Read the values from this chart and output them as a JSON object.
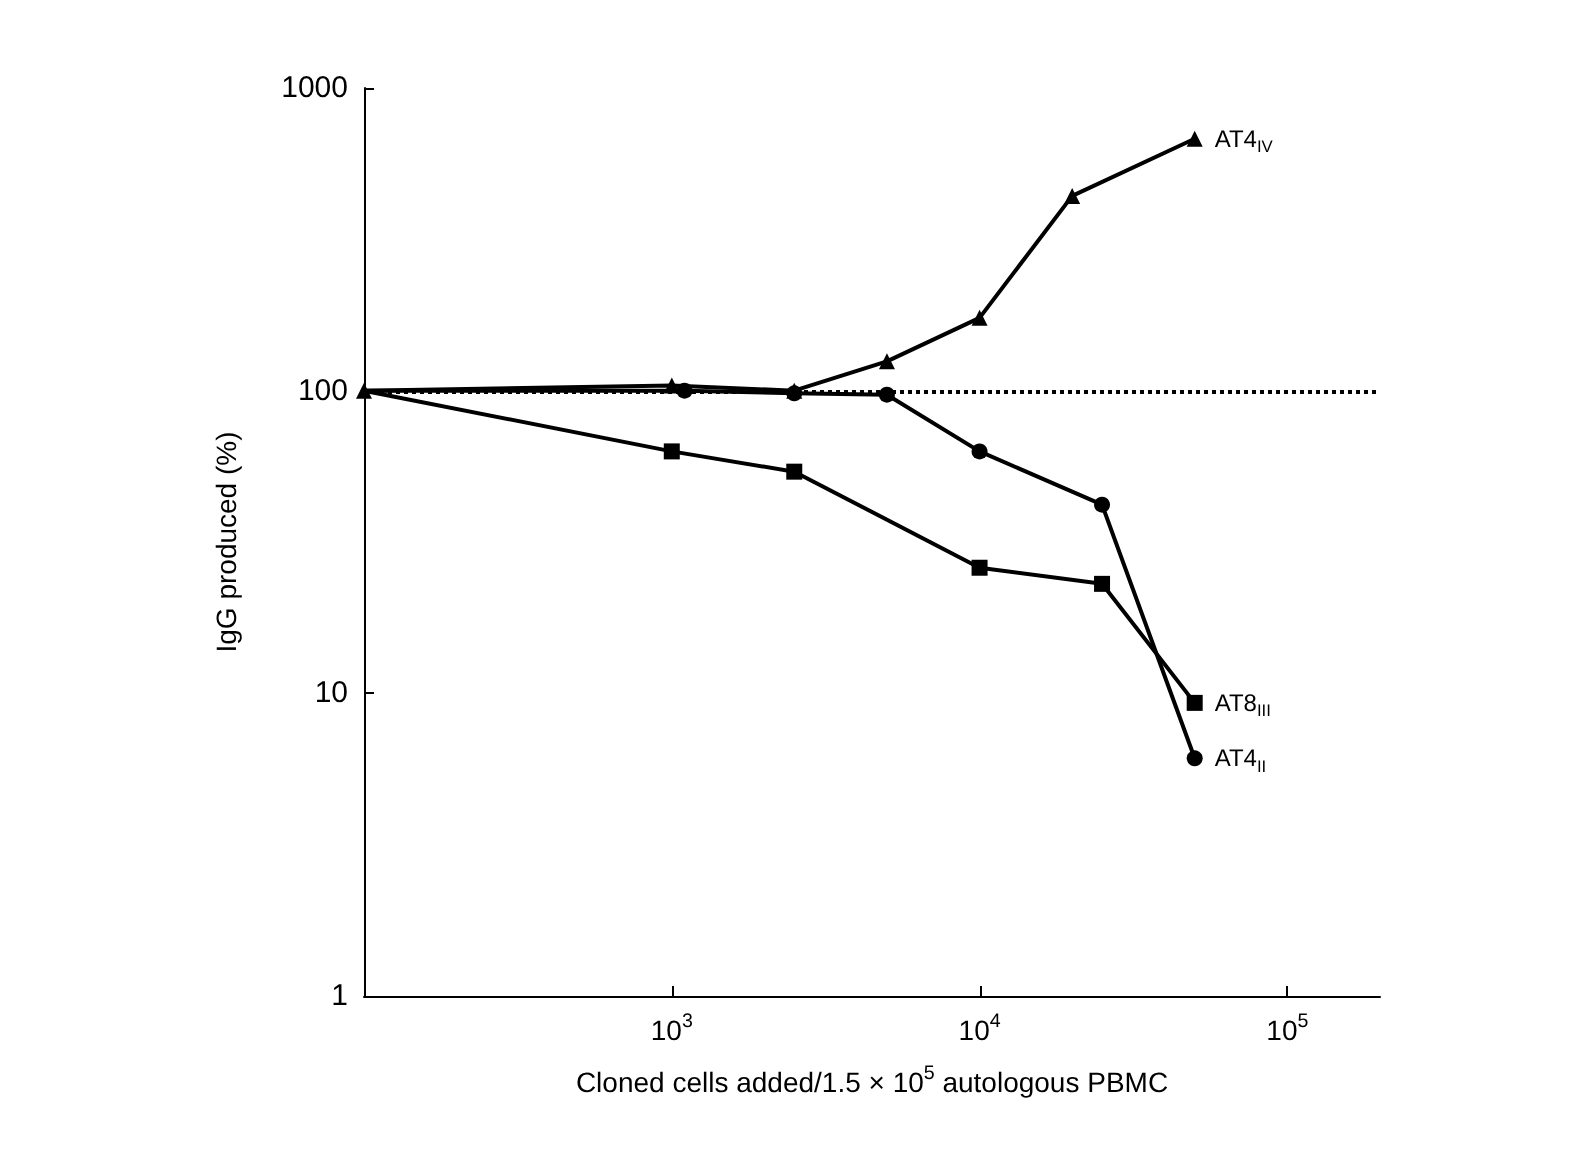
{
  "chart_data": {
    "type": "line",
    "xlabel": "Cloned cells added/1.5 × 10$^{5}$ autologous PBMC",
    "ylabel": "IgG produced (%)",
    "log": "xy",
    "xlim": [
      100,
      200000
    ],
    "xticks": [
      {
        "value": 1000,
        "label": "10$^{3}$"
      },
      {
        "value": 10000,
        "label": "10$^{4}$"
      },
      {
        "value": 100000,
        "label": "10$^{5}$"
      }
    ],
    "ylim": [
      1,
      1000
    ],
    "yticks": [
      1,
      10,
      100,
      1000
    ],
    "grid": false,
    "legend": false,
    "line_style": "solid",
    "ref_lines": [
      {
        "axis": "y",
        "value": 100,
        "line_style": "dotted",
        "color": "#000000"
      }
    ],
    "series": [
      {
        "name": "AT4$_{IV}$",
        "color": "#000000",
        "marker": "triangle",
        "x": [
          100,
          1000,
          2500,
          5000,
          10000,
          20000,
          50000
        ],
        "values": [
          100,
          104,
          100,
          125,
          174,
          440,
          680
        ]
      },
      {
        "name": "AT4$_{II}$",
        "color": "#000000",
        "marker": "circle",
        "x": [
          100,
          1100,
          2500,
          5000,
          10000,
          25000,
          50000
        ],
        "values": [
          100,
          100,
          98,
          97,
          63,
          42,
          6.1
        ]
      },
      {
        "name": "AT8$_{III}$",
        "color": "#000000",
        "marker": "square",
        "x": [
          100,
          1000,
          2500,
          10000,
          25000,
          50000
        ],
        "values": [
          100,
          63,
          54,
          26,
          23,
          9.3
        ]
      }
    ]
  }
}
